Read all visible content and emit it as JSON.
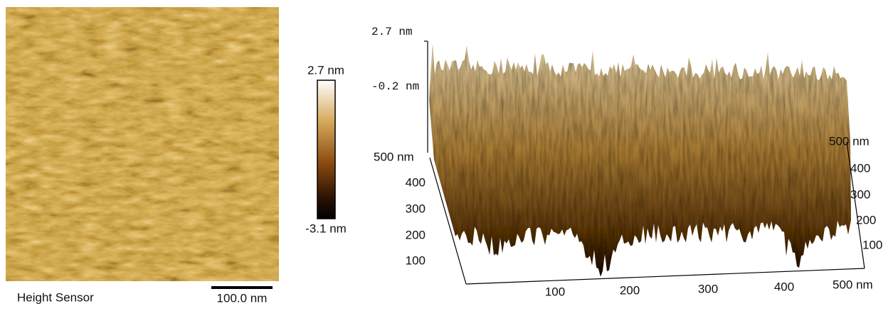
{
  "height_map": {
    "label": "Height Sensor",
    "scale_bar": "100.0 nm"
  },
  "colorbar": {
    "max": "2.7 nm",
    "min": "-3.1 nm"
  },
  "surface_3d": {
    "z_labels": [
      "2.7 nm",
      "-0.2 nm"
    ],
    "y_labels": [
      "500 nm",
      "400",
      "300",
      "200",
      "100"
    ],
    "x_labels": [
      "100",
      "200",
      "300",
      "400",
      "500 nm"
    ],
    "right_labels": [
      "500 nm",
      "400",
      "300",
      "200",
      "100"
    ]
  }
}
